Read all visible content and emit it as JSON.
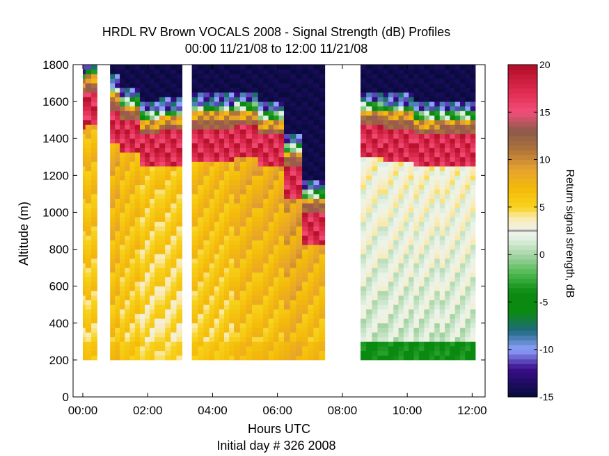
{
  "chart_data": {
    "type": "heatmap",
    "title": "HRDL RV Brown VOCALS 2008 - Signal Strength (dB) Profiles",
    "subtitle": "00:00 11/21/08 to 12:00 11/21/08",
    "xlabel": "Hours UTC",
    "xlabel2": "Initial day # 326  2008",
    "ylabel": "Altitude (m)",
    "colorbar_label": "Return signal strength, dB",
    "xlim": [
      -0.3,
      12.4
    ],
    "ylim": [
      0,
      1800
    ],
    "clim": [
      -15,
      20
    ],
    "x_ticks": [
      0,
      2,
      4,
      6,
      8,
      10,
      12
    ],
    "x_tick_labels": [
      "00:00",
      "02:00",
      "04:00",
      "06:00",
      "08:00",
      "10:00",
      "12:00"
    ],
    "y_ticks": [
      0,
      200,
      400,
      600,
      800,
      1000,
      1200,
      1400,
      1600,
      1800
    ],
    "y_tick_labels": [
      "0",
      "200",
      "400",
      "600",
      "800",
      "1000",
      "1200",
      "1400",
      "1600",
      "1800"
    ],
    "colorbar_ticks": [
      20,
      15,
      10,
      5,
      0,
      -5,
      -10,
      -15
    ],
    "colorbar_tick_labels": [
      "20",
      "15",
      "10",
      "5",
      "0",
      "-5",
      "-10",
      "-15"
    ],
    "cell_height_m": 25,
    "data_bottom_m": 200,
    "profiles": [
      {
        "t0": 0.0,
        "t1": 0.08,
        "cloud_top_m": 1640,
        "cloud_base_m": 240,
        "bl_db": 5
      },
      {
        "t0": 0.08,
        "t1": 0.44,
        "cloud_top_m": 1660,
        "cloud_base_m": 240,
        "bl_db": 5
      },
      {
        "t0": 0.84,
        "t1": 1.14,
        "cloud_top_m": 1560,
        "cloud_base_m": 240,
        "bl_db": 6
      },
      {
        "t0": 1.14,
        "t1": 1.76,
        "cloud_top_m": 1500,
        "cloud_base_m": 240,
        "bl_db": 5
      },
      {
        "t0": 1.76,
        "t1": 2.36,
        "cloud_top_m": 1420,
        "cloud_base_m": 240,
        "bl_db": 4
      },
      {
        "t0": 2.36,
        "t1": 3.06,
        "cloud_top_m": 1440,
        "cloud_base_m": 240,
        "bl_db": 4
      },
      {
        "t0": 3.36,
        "t1": 3.9,
        "cloud_top_m": 1460,
        "cloud_base_m": 240,
        "bl_db": 5
      },
      {
        "t0": 3.9,
        "t1": 4.66,
        "cloud_top_m": 1460,
        "cloud_base_m": 240,
        "bl_db": 5
      },
      {
        "t0": 4.66,
        "t1": 5.4,
        "cloud_top_m": 1470,
        "cloud_base_m": 240,
        "bl_db": 6
      },
      {
        "t0": 5.4,
        "t1": 6.2,
        "cloud_top_m": 1420,
        "cloud_base_m": 240,
        "bl_db": 6
      },
      {
        "t0": 6.2,
        "t1": 6.76,
        "cloud_top_m": 1250,
        "cloud_base_m": 240,
        "bl_db": 7
      },
      {
        "t0": 6.76,
        "t1": 7.46,
        "cloud_top_m": 1000,
        "cloud_base_m": 240,
        "bl_db": 6
      },
      {
        "t0": 8.56,
        "t1": 9.26,
        "cloud_top_m": 1480,
        "cloud_base_m": 240,
        "bl_db": 1
      },
      {
        "t0": 9.26,
        "t1": 10.2,
        "cloud_top_m": 1460,
        "cloud_base_m": 240,
        "bl_db": 1
      },
      {
        "t0": 10.2,
        "t1": 11.0,
        "cloud_top_m": 1420,
        "cloud_base_m": 240,
        "bl_db": 1
      },
      {
        "t0": 11.0,
        "t1": 12.1,
        "cloud_top_m": 1430,
        "cloud_base_m": 240,
        "bl_db": 1
      }
    ],
    "gaps_hours": [
      [
        0.44,
        0.84
      ],
      [
        3.06,
        3.36
      ],
      [
        7.46,
        8.56
      ]
    ],
    "colormap": [
      {
        "db": -15,
        "color": "#060b3a"
      },
      {
        "db": -12,
        "color": "#3a0d8c"
      },
      {
        "db": -10,
        "color": "#8fa2ff"
      },
      {
        "db": -8,
        "color": "#1f6a80"
      },
      {
        "db": -6,
        "color": "#0a8a10"
      },
      {
        "db": -4,
        "color": "#0a8a10"
      },
      {
        "db": -2,
        "color": "#4cb84f"
      },
      {
        "db": 0,
        "color": "#a9d6a9"
      },
      {
        "db": 2,
        "color": "#eaf4ea"
      },
      {
        "db": 3,
        "color": "#f3f0dc"
      },
      {
        "db": 4,
        "color": "#fbe9a6"
      },
      {
        "db": 5,
        "color": "#f7d21a"
      },
      {
        "db": 7,
        "color": "#f4ba0a"
      },
      {
        "db": 9,
        "color": "#e6a22e"
      },
      {
        "db": 11,
        "color": "#b0743a"
      },
      {
        "db": 13,
        "color": "#8a5a49"
      },
      {
        "db": 15,
        "color": "#f24f7a"
      },
      {
        "db": 17,
        "color": "#e12d52"
      },
      {
        "db": 20,
        "color": "#b10c26"
      }
    ]
  }
}
